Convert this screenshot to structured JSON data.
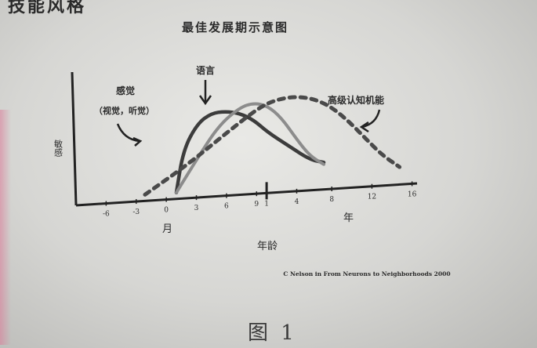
{
  "page": {
    "heading": "技能风格",
    "caption": "图 1"
  },
  "chart_data": {
    "type": "line",
    "title": "最佳发展期示意图",
    "xlabel": "年龄",
    "ylabel": "敏感",
    "x_ticks": [
      "-6",
      "-3",
      "0",
      "3",
      "6",
      "9",
      "1",
      "4",
      "8",
      "12",
      "16"
    ],
    "x_unit_left": "月",
    "x_unit_right": "年",
    "credit": "C Nelson in From Neurons to Neighborhoods 2000",
    "series": [
      {
        "name": "感觉（视觉，听觉）",
        "style": "solid-dark",
        "color": "#3c3c3c",
        "x": [
          -2.5,
          -2.0,
          -1.0,
          0.0,
          1.0,
          2.0,
          3.0,
          4.0,
          5.5,
          7.0,
          8.0
        ],
        "y": [
          0.0,
          0.45,
          0.72,
          0.82,
          0.83,
          0.8,
          0.72,
          0.58,
          0.42,
          0.26,
          0.22
        ]
      },
      {
        "name": "语言",
        "style": "solid-light",
        "color": "#8c8c8c",
        "x": [
          -2.5,
          -1.0,
          0.5,
          2.0,
          3.0,
          4.0,
          5.0,
          6.0,
          7.0,
          8.0
        ],
        "y": [
          0.0,
          0.35,
          0.68,
          0.86,
          0.9,
          0.86,
          0.72,
          0.5,
          0.3,
          0.2
        ]
      },
      {
        "name": "高级认知机能",
        "style": "dashed",
        "color": "#4a4a4a",
        "x": [
          -3.5,
          -1.0,
          1.0,
          3.0,
          4.0,
          5.0,
          6.0,
          7.0,
          8.0,
          9.0,
          10.0,
          11.0
        ],
        "y": [
          0.0,
          0.3,
          0.58,
          0.85,
          0.92,
          0.94,
          0.91,
          0.82,
          0.66,
          0.46,
          0.26,
          0.12
        ]
      }
    ],
    "annotations": [
      {
        "text": "感觉",
        "target": 0
      },
      {
        "text": "（视觉，听觉）",
        "target": 0
      },
      {
        "text": "语言",
        "target": 1
      },
      {
        "text": "高级认知机能",
        "target": 2
      }
    ]
  }
}
